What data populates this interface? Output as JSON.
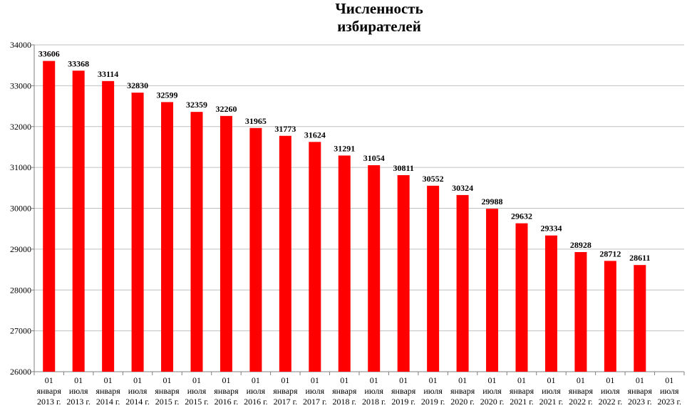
{
  "chart_data": {
    "type": "bar",
    "title_lines": [
      "Численность",
      "избирателей"
    ],
    "categories": [
      [
        "01",
        "января",
        "2013 г."
      ],
      [
        "01",
        "июля",
        "2013 г."
      ],
      [
        "01",
        "января",
        "2014 г."
      ],
      [
        "01",
        "июля",
        "2014 г."
      ],
      [
        "01",
        "января",
        "2015 г."
      ],
      [
        "01",
        "июля",
        "2015 г."
      ],
      [
        "01",
        "января",
        "2016 г."
      ],
      [
        "01",
        "июля",
        "2016 г."
      ],
      [
        "01",
        "января",
        "2017 г."
      ],
      [
        "01",
        "июля",
        "2017 г."
      ],
      [
        "01",
        "января",
        "2018 г."
      ],
      [
        "01",
        "июля",
        "2018 г."
      ],
      [
        "01",
        "января",
        "2019 г."
      ],
      [
        "01",
        "июля",
        "2019 г."
      ],
      [
        "01",
        "января",
        "2020 г."
      ],
      [
        "01",
        "июля",
        "2020 г."
      ],
      [
        "01",
        "января",
        "2021 г."
      ],
      [
        "01",
        "июля",
        "2021 г."
      ],
      [
        "01",
        "января",
        "2022 г."
      ],
      [
        "01",
        "июля",
        "2022 г."
      ],
      [
        "01",
        "января",
        "2023 г."
      ],
      [
        "01",
        "июля",
        "2023 г."
      ]
    ],
    "values": [
      33606,
      33368,
      33114,
      32830,
      32599,
      32359,
      32260,
      31965,
      31773,
      31624,
      31291,
      31054,
      30811,
      30552,
      30324,
      29988,
      29632,
      29334,
      28928,
      28712,
      28611,
      null
    ],
    "ylim": [
      26000,
      34000
    ],
    "yticks": [
      26000,
      27000,
      28000,
      29000,
      30000,
      31000,
      32000,
      33000,
      34000
    ],
    "grid": true,
    "bar_color": "#ff0000",
    "grid_color": "#c0c0c0",
    "axis_color": "#808080",
    "xlabel": "",
    "ylabel": ""
  }
}
